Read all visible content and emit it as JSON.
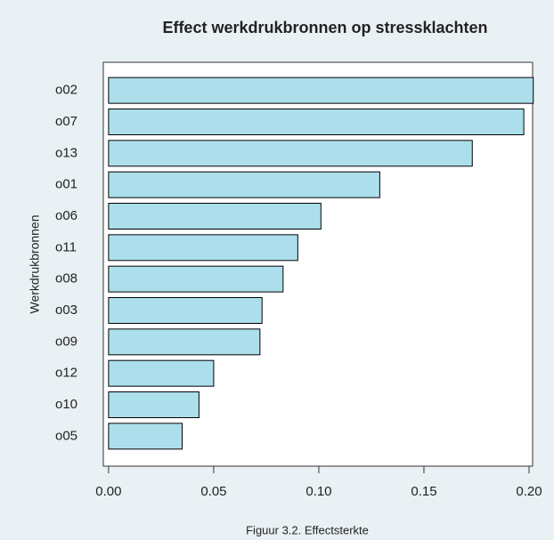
{
  "chart_data": {
    "type": "bar",
    "title": "Effect werkdrukbronnen op stressklachten",
    "y_label": "Werkdrukbronnen",
    "caption": "Figuur 3.2. Effectsterkte",
    "categories": [
      "o02",
      "o07",
      "o13",
      "o01",
      "o06",
      "o11",
      "o08",
      "o03",
      "o09",
      "o12",
      "o10",
      "o05"
    ],
    "values": [
      0.202,
      0.1975,
      0.173,
      0.129,
      0.101,
      0.09,
      0.083,
      0.073,
      0.072,
      0.05,
      0.043,
      0.035
    ],
    "color": "#acdfeb",
    "xlim": [
      -0.0025,
      0.2017
    ],
    "xticks": [
      {
        "value": 0,
        "label": "0.00"
      },
      {
        "value": 0.05,
        "label": "0.05"
      },
      {
        "value": 0.1,
        "label": "0.10"
      },
      {
        "value": 0.15,
        "label": "0.15"
      },
      {
        "value": 0.2,
        "label": "0.20"
      }
    ],
    "grid": false
  }
}
